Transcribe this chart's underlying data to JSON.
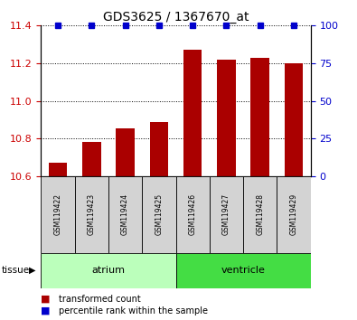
{
  "title": "GDS3625 / 1367670_at",
  "samples": [
    "GSM119422",
    "GSM119423",
    "GSM119424",
    "GSM119425",
    "GSM119426",
    "GSM119427",
    "GSM119428",
    "GSM119429"
  ],
  "bar_values": [
    10.67,
    10.78,
    10.855,
    10.885,
    11.27,
    11.22,
    11.23,
    11.2
  ],
  "percentile_values": [
    100,
    100,
    100,
    100,
    100,
    100,
    100,
    100
  ],
  "bar_color": "#aa0000",
  "percentile_color": "#0000cc",
  "ylim_left": [
    10.6,
    11.4
  ],
  "ylim_right": [
    0,
    100
  ],
  "yticks_left": [
    10.6,
    10.8,
    11.0,
    11.2,
    11.4
  ],
  "yticks_right": [
    0,
    25,
    50,
    75,
    100
  ],
  "groups": [
    {
      "label": "atrium",
      "start": 0,
      "end": 4,
      "color": "#bbffbb"
    },
    {
      "label": "ventricle",
      "start": 4,
      "end": 8,
      "color": "#44dd44"
    }
  ],
  "legend_items": [
    {
      "label": "transformed count",
      "color": "#aa0000"
    },
    {
      "label": "percentile rank within the sample",
      "color": "#0000cc"
    }
  ],
  "bar_color_light": "#d3d3d3",
  "tick_label_color_left": "#cc0000",
  "tick_label_color_right": "#0000cc",
  "bar_width": 0.55
}
